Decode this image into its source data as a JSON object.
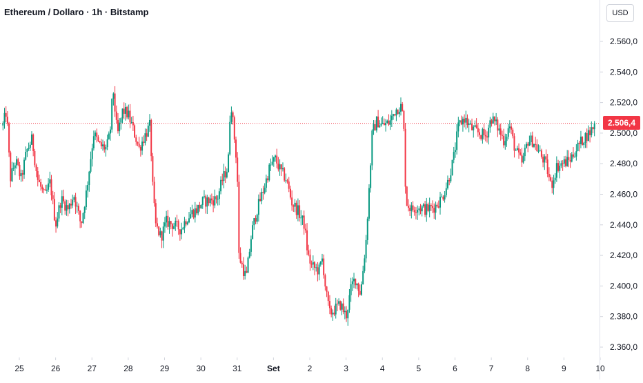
{
  "header": {
    "title": "Ethereum / Dollaro · 1h · Bitstamp",
    "currency": "USD"
  },
  "colors": {
    "up": "#089981",
    "down": "#f23645",
    "text": "#131722",
    "axis_text": "#131722"
  },
  "chart_data": {
    "type": "candlestick",
    "title": "Ethereum / Dollaro · 1h · Bitstamp",
    "interval": "1h",
    "exchange": "Bitstamp",
    "currency": "USD",
    "last_price": 2506.4,
    "last_price_label": "2.506,4",
    "ylim": [
      2354,
      2575
    ],
    "xlim": [
      24.55,
      41.0
    ],
    "y_ticks": [
      {
        "value": 2560,
        "label": "2.560,0"
      },
      {
        "value": 2540,
        "label": "2.540,0"
      },
      {
        "value": 2520,
        "label": "2.520,0"
      },
      {
        "value": 2500,
        "label": "2.500,0"
      },
      {
        "value": 2480,
        "label": "2.480,0"
      },
      {
        "value": 2460,
        "label": "2.460,0"
      },
      {
        "value": 2440,
        "label": "2.440,0"
      },
      {
        "value": 2420,
        "label": "2.420,0"
      },
      {
        "value": 2400,
        "label": "2.400,0"
      },
      {
        "value": 2380,
        "label": "2.380,0"
      },
      {
        "value": 2360,
        "label": "2.360,0"
      }
    ],
    "x_ticks": [
      {
        "day": 25,
        "label": "25"
      },
      {
        "day": 26,
        "label": "26"
      },
      {
        "day": 27,
        "label": "27"
      },
      {
        "day": 28,
        "label": "28"
      },
      {
        "day": 29,
        "label": "29"
      },
      {
        "day": 30,
        "label": "30"
      },
      {
        "day": 31,
        "label": "31"
      },
      {
        "day": 32,
        "label": "Set"
      },
      {
        "day": 33,
        "label": "2"
      },
      {
        "day": 34,
        "label": "3"
      },
      {
        "day": 35,
        "label": "4"
      },
      {
        "day": 36,
        "label": "5"
      },
      {
        "day": 37,
        "label": "6"
      },
      {
        "day": 38,
        "label": "7"
      },
      {
        "day": 39,
        "label": "8"
      },
      {
        "day": 40,
        "label": "9"
      },
      {
        "day": 41,
        "label": "10"
      }
    ],
    "close_path": [
      [
        24.55,
        2505
      ],
      [
        24.65,
        2515
      ],
      [
        24.75,
        2470
      ],
      [
        24.9,
        2482
      ],
      [
        25.05,
        2470
      ],
      [
        25.2,
        2488
      ],
      [
        25.35,
        2496
      ],
      [
        25.5,
        2470
      ],
      [
        25.7,
        2458
      ],
      [
        25.85,
        2468
      ],
      [
        26.0,
        2440
      ],
      [
        26.15,
        2457
      ],
      [
        26.35,
        2450
      ],
      [
        26.5,
        2460
      ],
      [
        26.7,
        2440
      ],
      [
        26.85,
        2462
      ],
      [
        27.05,
        2500
      ],
      [
        27.2,
        2492
      ],
      [
        27.4,
        2490
      ],
      [
        27.5,
        2500
      ],
      [
        27.58,
        2530
      ],
      [
        27.7,
        2498
      ],
      [
        27.85,
        2515
      ],
      [
        28.0,
        2512
      ],
      [
        28.1,
        2505
      ],
      [
        28.3,
        2490
      ],
      [
        28.45,
        2498
      ],
      [
        28.6,
        2505
      ],
      [
        28.68,
        2462
      ],
      [
        28.75,
        2440
      ],
      [
        28.9,
        2432
      ],
      [
        29.05,
        2442
      ],
      [
        29.25,
        2440
      ],
      [
        29.45,
        2437
      ],
      [
        29.6,
        2444
      ],
      [
        29.75,
        2448
      ],
      [
        29.9,
        2450
      ],
      [
        30.05,
        2455
      ],
      [
        30.25,
        2456
      ],
      [
        30.45,
        2457
      ],
      [
        30.6,
        2470
      ],
      [
        30.75,
        2478
      ],
      [
        30.82,
        2523
      ],
      [
        30.9,
        2503
      ],
      [
        31.0,
        2478
      ],
      [
        31.05,
        2420
      ],
      [
        31.15,
        2412
      ],
      [
        31.25,
        2405
      ],
      [
        31.4,
        2435
      ],
      [
        31.55,
        2450
      ],
      [
        31.75,
        2465
      ],
      [
        31.9,
        2478
      ],
      [
        32.05,
        2483
      ],
      [
        32.2,
        2475
      ],
      [
        32.35,
        2470
      ],
      [
        32.5,
        2455
      ],
      [
        32.7,
        2448
      ],
      [
        32.85,
        2440
      ],
      [
        32.95,
        2420
      ],
      [
        33.05,
        2413
      ],
      [
        33.25,
        2410
      ],
      [
        33.35,
        2418
      ],
      [
        33.45,
        2395
      ],
      [
        33.55,
        2382
      ],
      [
        33.7,
        2385
      ],
      [
        33.85,
        2388
      ],
      [
        34.0,
        2380
      ],
      [
        34.15,
        2400
      ],
      [
        34.25,
        2405
      ],
      [
        34.4,
        2395
      ],
      [
        34.55,
        2430
      ],
      [
        34.65,
        2470
      ],
      [
        34.72,
        2500
      ],
      [
        34.85,
        2508
      ],
      [
        35.0,
        2505
      ],
      [
        35.2,
        2507
      ],
      [
        35.35,
        2515
      ],
      [
        35.5,
        2518
      ],
      [
        35.58,
        2510
      ],
      [
        35.65,
        2455
      ],
      [
        35.8,
        2450
      ],
      [
        35.95,
        2452
      ],
      [
        36.2,
        2450
      ],
      [
        36.45,
        2452
      ],
      [
        36.65,
        2458
      ],
      [
        36.8,
        2468
      ],
      [
        36.95,
        2482
      ],
      [
        37.1,
        2505
      ],
      [
        37.25,
        2510
      ],
      [
        37.45,
        2503
      ],
      [
        37.65,
        2500
      ],
      [
        37.85,
        2498
      ],
      [
        38.0,
        2510
      ],
      [
        38.15,
        2505
      ],
      [
        38.35,
        2495
      ],
      [
        38.5,
        2505
      ],
      [
        38.65,
        2490
      ],
      [
        38.85,
        2480
      ],
      [
        39.0,
        2495
      ],
      [
        39.15,
        2495
      ],
      [
        39.3,
        2488
      ],
      [
        39.5,
        2480
      ],
      [
        39.65,
        2465
      ],
      [
        39.8,
        2478
      ],
      [
        39.95,
        2480
      ],
      [
        40.15,
        2482
      ],
      [
        40.35,
        2490
      ],
      [
        40.55,
        2497
      ],
      [
        40.7,
        2500
      ],
      [
        40.85,
        2506
      ]
    ]
  }
}
